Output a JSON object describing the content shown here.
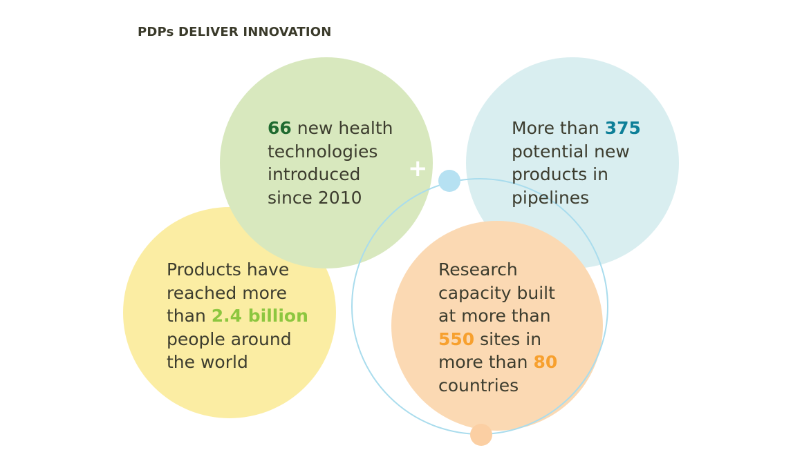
{
  "title": "PDPs DELIVER INNOVATION",
  "colors": {
    "yellow_circle": "#fbeda3",
    "green_circle": "#d8e8be",
    "blue_circle": "#d9eef0",
    "orange_circle": "#fbd9b3",
    "ring": "#a9dced",
    "dot_blue": "#b6e1f2",
    "dot_orange": "#fbcfa3",
    "num_dark_green": "#1f6a2f",
    "num_teal": "#0d7f98",
    "num_light_green": "#8cc63f",
    "num_orange": "#f7a02e"
  },
  "plus_symbol": "+",
  "circles": {
    "green": {
      "num": "66",
      "line1_rest": " new health",
      "line2": "technologies",
      "line3": "introduced",
      "line4": "since 2010"
    },
    "blue": {
      "line1_pre": "More than ",
      "num": "375",
      "line2": "potential new",
      "line3": "products in",
      "line4": "pipelines"
    },
    "yellow": {
      "line1": "Products have",
      "line2": "reached more",
      "line3_pre": "than ",
      "num": "2.4 billion",
      "line4": "people around",
      "line5": "the world"
    },
    "orange": {
      "line1": "Research",
      "line2": "capacity built",
      "line3": "at more than",
      "num1": "550",
      "line4_rest": " sites in",
      "line5_pre": "more than ",
      "num2": "80",
      "line6": "countries"
    }
  }
}
